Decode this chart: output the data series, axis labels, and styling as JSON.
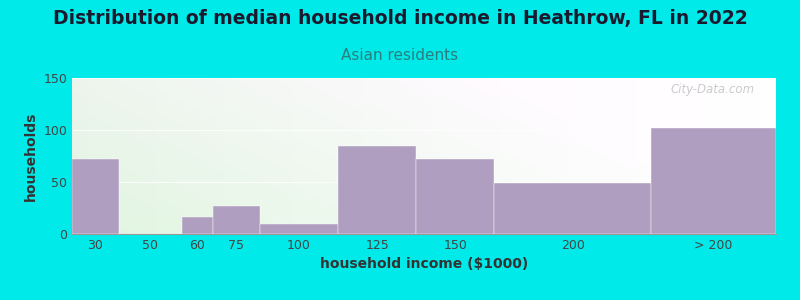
{
  "title": "Distribution of median household income in Heathrow, FL in 2022",
  "subtitle": "Asian residents",
  "xlabel": "household income ($1000)",
  "ylabel": "households",
  "bar_labels": [
    "30",
    "50",
    "60",
    "75",
    "100",
    "125",
    "150",
    "200",
    "> 200"
  ],
  "bar_values": [
    72,
    0,
    16,
    27,
    10,
    85,
    72,
    49,
    102
  ],
  "bar_color": "#b09ec0",
  "ylim": [
    0,
    150
  ],
  "yticks": [
    0,
    50,
    100,
    150
  ],
  "background_outer": "#00eaea",
  "title_color": "#1a1a2e",
  "subtitle_color": "#2e7d7d",
  "title_fontsize": 13.5,
  "subtitle_fontsize": 11,
  "axis_label_fontsize": 10,
  "tick_fontsize": 9,
  "watermark": "City-Data.com",
  "bar_edges": [
    15,
    30,
    50,
    60,
    75,
    100,
    125,
    150,
    200,
    240
  ],
  "tick_x_positions": [
    22.5,
    40,
    55,
    67.5,
    87.5,
    112.5,
    137.5,
    175,
    220
  ]
}
